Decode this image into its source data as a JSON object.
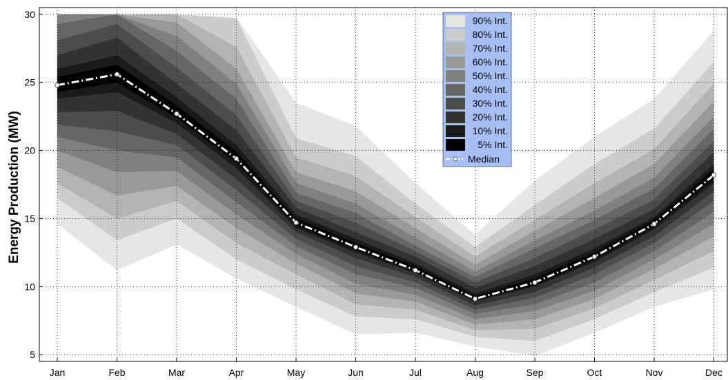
{
  "chart_data": {
    "type": "area",
    "title": "",
    "xlabel": "",
    "ylabel": "Energy Production (MW)",
    "categories": [
      "Jan",
      "Feb",
      "Mar",
      "Apr",
      "May",
      "Jun",
      "Jul",
      "Aug",
      "Sep",
      "Oct",
      "Nov",
      "Dec"
    ],
    "ylim": [
      4.5,
      30.5
    ],
    "yticks": [
      5,
      10,
      15,
      20,
      25,
      30
    ],
    "grid": true,
    "legend_position": "top-center",
    "median": {
      "name": "Median",
      "values": [
        24.8,
        25.6,
        22.7,
        19.4,
        14.7,
        12.9,
        11.2,
        9.1,
        10.3,
        12.2,
        14.6,
        18.2
      ],
      "color": "#ffffff"
    },
    "bands": [
      {
        "name": "90% Int.",
        "color": "#e6e6e6",
        "lower": [
          14.6,
          11.2,
          13.1,
          10.6,
          8.5,
          6.5,
          6.6,
          5.6,
          4.9,
          6.6,
          8.5,
          9.8
        ],
        "upper": [
          30.0,
          30.0,
          30.0,
          29.8,
          23.5,
          21.8,
          17.6,
          13.8,
          17.8,
          21.0,
          23.8,
          28.8
        ]
      },
      {
        "name": "80% Int.",
        "color": "#cccccc",
        "lower": [
          16.5,
          13.4,
          15.0,
          12.0,
          9.8,
          7.8,
          7.6,
          6.3,
          6.0,
          7.6,
          9.6,
          11.4
        ],
        "upper": [
          30.0,
          30.0,
          30.0,
          29.7,
          20.9,
          19.6,
          16.1,
          12.9,
          16.0,
          19.0,
          21.6,
          26.5
        ]
      },
      {
        "name": "70% Int.",
        "color": "#b3b3b3",
        "lower": [
          17.6,
          15.0,
          16.3,
          13.2,
          10.9,
          8.7,
          8.3,
          6.8,
          6.9,
          8.4,
          10.5,
          12.6
        ],
        "upper": [
          30.0,
          30.0,
          30.0,
          27.6,
          19.5,
          18.1,
          15.1,
          12.2,
          14.9,
          17.6,
          20.1,
          24.9
        ]
      },
      {
        "name": "60% Int.",
        "color": "#999999",
        "lower": [
          18.8,
          16.7,
          17.4,
          14.3,
          11.7,
          9.5,
          8.9,
          7.2,
          7.6,
          9.1,
          11.3,
          13.7
        ],
        "upper": [
          30.0,
          30.0,
          29.4,
          26.0,
          18.4,
          17.0,
          14.3,
          11.6,
          14.1,
          16.5,
          19.0,
          23.6
        ]
      },
      {
        "name": "50% Int.",
        "color": "#808080",
        "lower": [
          20.0,
          18.4,
          18.5,
          15.3,
          12.4,
          10.2,
          9.4,
          7.6,
          8.2,
          9.7,
          12.0,
          14.6
        ],
        "upper": [
          30.0,
          30.0,
          28.4,
          24.9,
          17.6,
          16.1,
          13.6,
          11.1,
          13.4,
          15.6,
          18.0,
          22.5
        ]
      },
      {
        "name": "40% Int.",
        "color": "#666666",
        "lower": [
          21.0,
          20.0,
          19.5,
          16.2,
          13.0,
          10.9,
          9.9,
          8.0,
          8.7,
          10.3,
          12.6,
          15.5
        ],
        "upper": [
          29.3,
          30.0,
          27.3,
          23.8,
          16.9,
          15.4,
          13.0,
          10.7,
          12.8,
          14.9,
          17.2,
          21.6
        ]
      },
      {
        "name": "30% Int.",
        "color": "#4d4d4d",
        "lower": [
          21.9,
          21.4,
          20.4,
          17.1,
          13.5,
          11.5,
          10.3,
          8.3,
          9.2,
          10.9,
          13.2,
          16.3
        ],
        "upper": [
          28.1,
          29.3,
          26.1,
          22.6,
          16.3,
          14.7,
          12.6,
          10.3,
          12.1,
          14.2,
          16.4,
          20.7
        ]
      },
      {
        "name": "20% Int.",
        "color": "#333333",
        "lower": [
          22.8,
          22.9,
          21.2,
          17.9,
          14.0,
          12.1,
          10.7,
          8.6,
          9.6,
          11.4,
          13.7,
          17.0
        ],
        "upper": [
          27.0,
          28.3,
          24.9,
          21.5,
          15.8,
          14.0,
          12.2,
          9.9,
          11.5,
          13.5,
          15.7,
          19.9
        ]
      },
      {
        "name": "10% Int.",
        "color": "#1a1a1a",
        "lower": [
          23.8,
          24.3,
          22.0,
          18.7,
          14.3,
          12.5,
          11.0,
          8.9,
          10.0,
          11.8,
          14.2,
          17.6
        ],
        "upper": [
          26.0,
          27.0,
          23.9,
          20.4,
          15.3,
          13.5,
          11.7,
          9.5,
          10.9,
          12.8,
          15.1,
          19.0
        ]
      },
      {
        "name": "5% Int.",
        "color": "#000000",
        "lower": [
          24.3,
          25.0,
          22.4,
          19.1,
          14.5,
          12.7,
          11.1,
          9.0,
          10.1,
          12.0,
          14.4,
          17.9
        ],
        "upper": [
          25.4,
          26.3,
          23.3,
          19.9,
          15.0,
          13.2,
          11.5,
          9.3,
          10.6,
          12.5,
          14.9,
          18.6
        ]
      }
    ],
    "legend_background": "#a8bff5"
  }
}
